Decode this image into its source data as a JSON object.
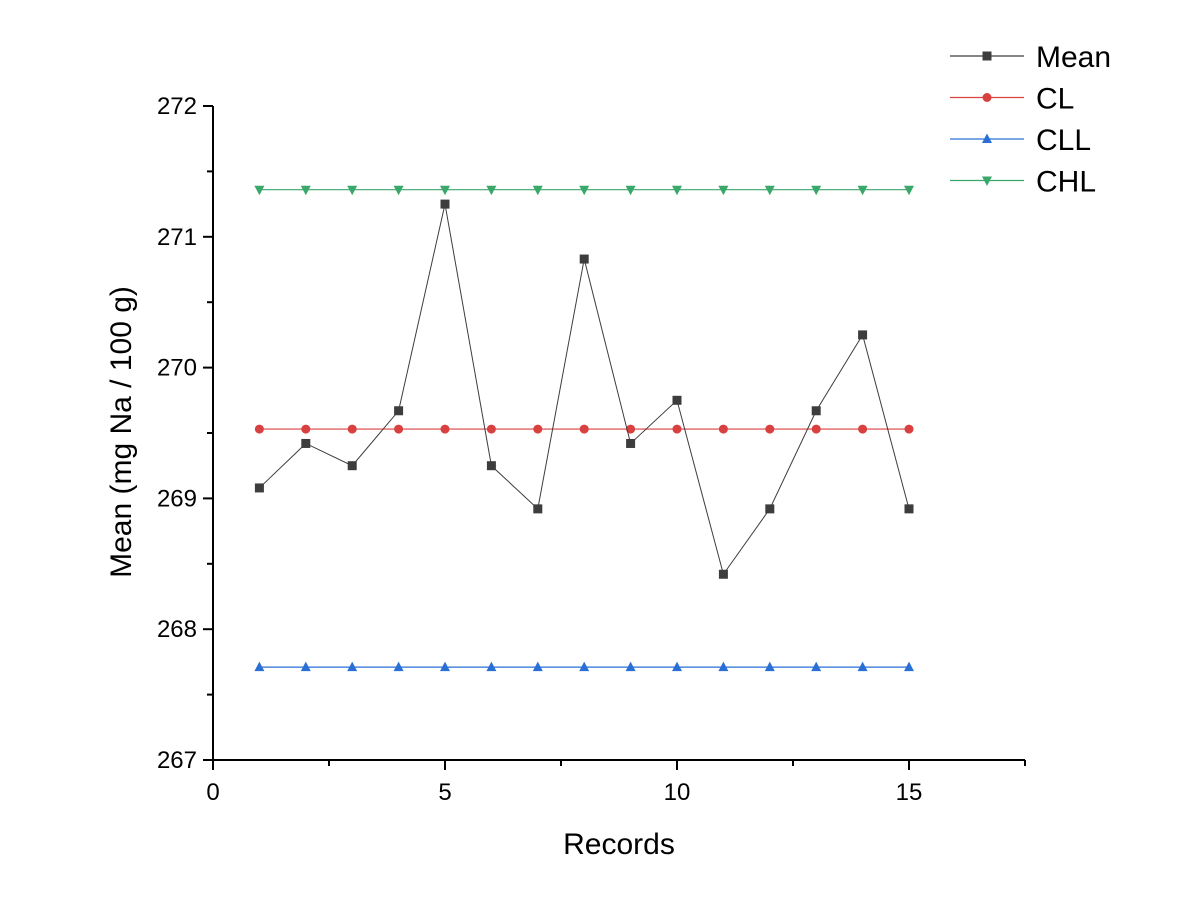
{
  "chart_data": {
    "type": "line",
    "xlabel": "Records",
    "ylabel": "Mean (mg Na / 100 g)",
    "xlim": [
      0,
      17.5
    ],
    "ylim": [
      267,
      272
    ],
    "xticks": [
      0,
      5,
      10,
      15
    ],
    "yticks": [
      267,
      268,
      269,
      270,
      271,
      272
    ],
    "grid": false,
    "legend_position": "top-right",
    "x": [
      1,
      2,
      3,
      4,
      5,
      6,
      7,
      8,
      9,
      10,
      11,
      12,
      13,
      14,
      15
    ],
    "series": [
      {
        "name": "Mean",
        "color": "#3d3d3d",
        "marker": "square",
        "values": [
          269.08,
          269.42,
          269.25,
          269.67,
          271.25,
          269.25,
          268.92,
          270.83,
          269.42,
          269.75,
          268.42,
          268.92,
          269.67,
          270.25,
          268.92
        ]
      },
      {
        "name": "CL",
        "color": "#d94040",
        "marker": "circle",
        "values": [
          269.53,
          269.53,
          269.53,
          269.53,
          269.53,
          269.53,
          269.53,
          269.53,
          269.53,
          269.53,
          269.53,
          269.53,
          269.53,
          269.53,
          269.53
        ]
      },
      {
        "name": "CLL",
        "color": "#2a6fd6",
        "marker": "triangle-up",
        "values": [
          267.71,
          267.71,
          267.71,
          267.71,
          267.71,
          267.71,
          267.71,
          267.71,
          267.71,
          267.71,
          267.71,
          267.71,
          267.71,
          267.71,
          267.71
        ]
      },
      {
        "name": "CHL",
        "color": "#3aa86b",
        "marker": "triangle-down",
        "values": [
          271.36,
          271.36,
          271.36,
          271.36,
          271.36,
          271.36,
          271.36,
          271.36,
          271.36,
          271.36,
          271.36,
          271.36,
          271.36,
          271.36,
          271.36
        ]
      }
    ]
  }
}
